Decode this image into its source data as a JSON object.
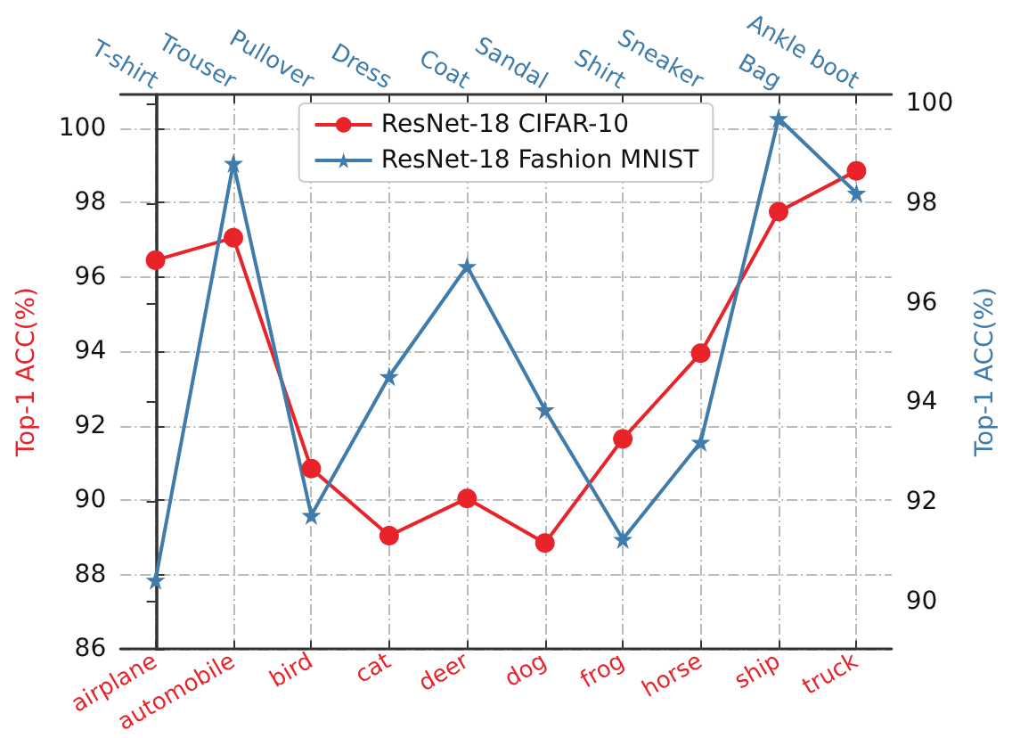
{
  "chart_data": {
    "type": "line",
    "ylabel": "Top-1 ACC(%)",
    "y2label": "Top-1 ACC(%)",
    "categories": [
      "airplane",
      "automobile",
      "bird",
      "cat",
      "deer",
      "dog",
      "frog",
      "horse",
      "ship",
      "truck"
    ],
    "annotations": [
      "T-shirt",
      "Trouser",
      "Pullover",
      "Dress",
      "Coat",
      "Sandal",
      "Shirt",
      "Sneaker",
      "Bag",
      "Ankle boot"
    ],
    "ylim": [
      86,
      100.9
    ],
    "yticks": [
      86,
      88,
      90,
      92,
      94,
      96,
      98,
      100
    ],
    "y2lim": [
      89.04,
      100.18
    ],
    "y2ticks": [
      90,
      92,
      94,
      96,
      98,
      100
    ],
    "series": [
      {
        "name": "ResNet-18 CIFAR-10",
        "color": "#e8242a",
        "marker": "circle",
        "values": [
          96.45,
          97.05,
          90.85,
          89.05,
          90.05,
          88.85,
          91.65,
          93.95,
          97.75,
          98.85
        ]
      },
      {
        "name": "ResNet-18 Fashion MNIST",
        "color": "#3f7cac",
        "marker": "star",
        "axis": "y2",
        "values": [
          90.43,
          98.8,
          91.73,
          94.52,
          96.73,
          93.85,
          91.25,
          93.2,
          99.7,
          98.2
        ]
      }
    ],
    "grid": true,
    "legend": "top"
  }
}
